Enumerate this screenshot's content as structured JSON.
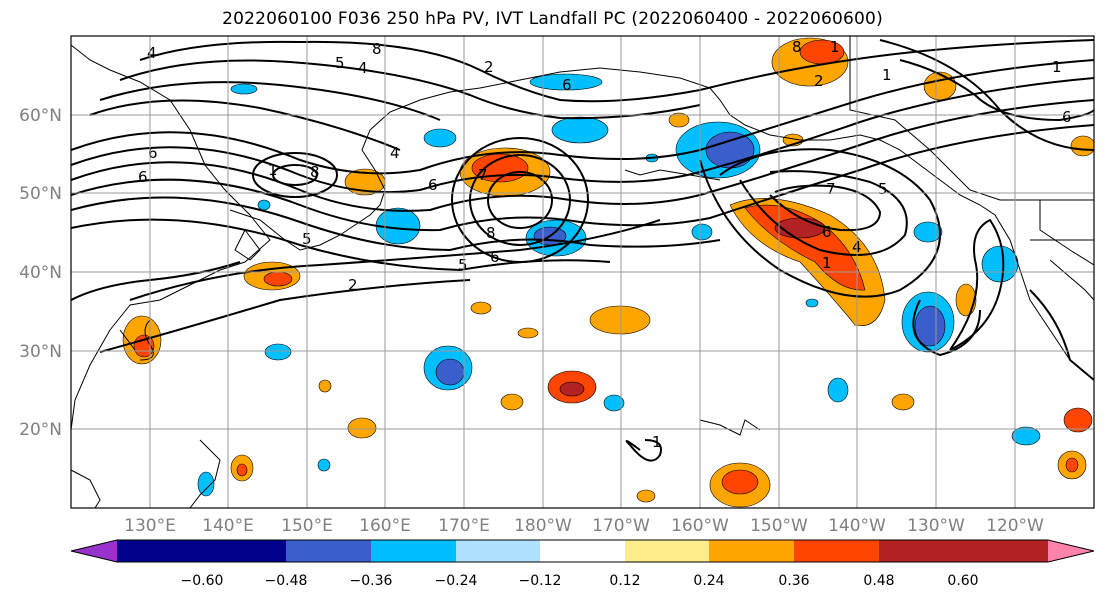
{
  "title": "2022060100 F036 250 hPa PV, IVT Landfall PC (2022060400 - 2022060600)",
  "lat_labels": [
    "60°N",
    "50°N",
    "40°N",
    "30°N",
    "20°N"
  ],
  "lon_labels": [
    "130°E",
    "140°E",
    "150°E",
    "160°E",
    "170°E",
    "180°W",
    "170°W",
    "160°W",
    "150°W",
    "140°W",
    "130°W",
    "120°W"
  ],
  "colorbar": {
    "colors": [
      "#9932cc",
      "#00008b",
      "#3a5fcd",
      "#00bfff",
      "#b0e2ff",
      "#ffffff",
      "#ffec8b",
      "#ffa500",
      "#ff4500",
      "#b22222",
      "#ff82ab"
    ],
    "tick_labels": [
      "−0.60",
      "−0.48",
      "−0.36",
      "−0.24",
      "−0.12",
      "0.12",
      "0.24",
      "0.36",
      "0.48",
      "0.60"
    ]
  },
  "contour_labels": [
    "4",
    "8",
    "5",
    "4",
    "2",
    "6",
    "6",
    "8",
    "1",
    "6",
    "6",
    "4",
    "7",
    "5",
    "8",
    "5",
    "2",
    "6",
    "1",
    "7",
    "5",
    "6",
    "4",
    "1",
    "8",
    "1",
    "2",
    "1",
    "1",
    "6"
  ]
}
